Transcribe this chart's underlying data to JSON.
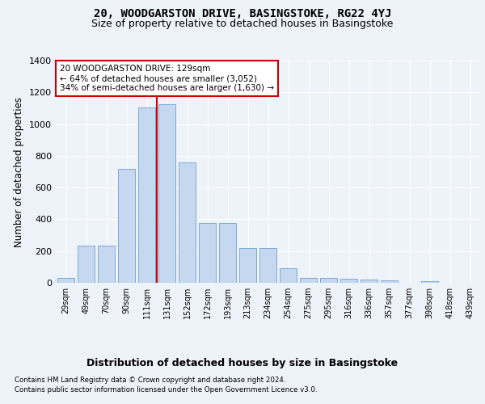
{
  "title": "20, WOODGARSTON DRIVE, BASINGSTOKE, RG22 4YJ",
  "subtitle": "Size of property relative to detached houses in Basingstoke",
  "xlabel": "Distribution of detached houses by size in Basingstoke",
  "ylabel": "Number of detached properties",
  "bar_labels": [
    "29sqm",
    "49sqm",
    "70sqm",
    "90sqm",
    "111sqm",
    "131sqm",
    "152sqm",
    "172sqm",
    "193sqm",
    "213sqm",
    "234sqm",
    "254sqm",
    "275sqm",
    "295sqm",
    "316sqm",
    "336sqm",
    "357sqm",
    "377sqm",
    "398sqm",
    "418sqm",
    "439sqm"
  ],
  "bar_values": [
    30,
    235,
    235,
    720,
    1105,
    1125,
    760,
    375,
    375,
    220,
    220,
    90,
    30,
    30,
    25,
    20,
    15,
    0,
    12,
    0,
    0
  ],
  "bar_color": "#c5d8f0",
  "bar_edge_color": "#6aa0d4",
  "vline_color": "#cc0000",
  "annotation_text": "20 WOODGARSTON DRIVE: 129sqm\n← 64% of detached houses are smaller (3,052)\n34% of semi-detached houses are larger (1,630) →",
  "annotation_box_color": "#cc0000",
  "ylim": [
    0,
    1400
  ],
  "yticks": [
    0,
    200,
    400,
    600,
    800,
    1000,
    1200,
    1400
  ],
  "footnote1": "Contains HM Land Registry data © Crown copyright and database right 2024.",
  "footnote2": "Contains public sector information licensed under the Open Government Licence v3.0.",
  "bg_color": "#eef2f9",
  "axes_bg_color": "#eef2f9",
  "title_fontsize": 10,
  "subtitle_fontsize": 9,
  "xlabel_fontsize": 9,
  "ylabel_fontsize": 8.5
}
